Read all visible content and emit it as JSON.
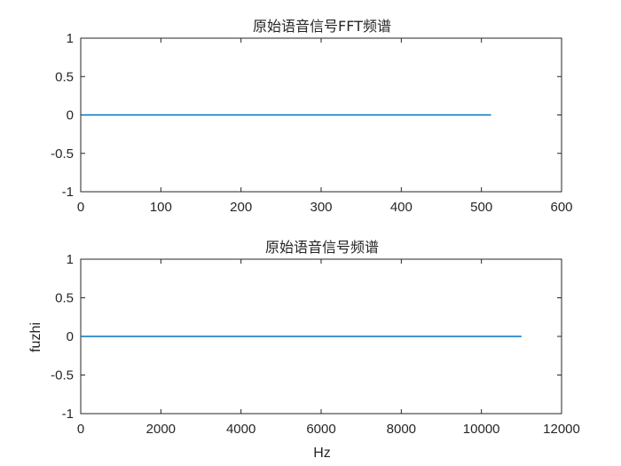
{
  "chart_data": [
    {
      "type": "line",
      "title": "原始语音信号FFT频谱",
      "xlabel": "",
      "ylabel": "",
      "xlim": [
        0,
        600
      ],
      "ylim": [
        -1,
        1
      ],
      "xticks": [
        0,
        100,
        200,
        300,
        400,
        500,
        600
      ],
      "yticks": [
        -1,
        -0.5,
        0,
        0.5,
        1
      ],
      "xtick_labels": [
        "0",
        "100",
        "200",
        "300",
        "400",
        "500",
        "600"
      ],
      "ytick_labels": [
        "-1",
        "-0.5",
        "0",
        "0.5",
        "1"
      ],
      "grid": false,
      "series": [
        {
          "x": [
            1,
            512
          ],
          "values": [
            0,
            0
          ],
          "color": "#0072BD"
        }
      ]
    },
    {
      "type": "line",
      "title": "原始语音信号频谱",
      "xlabel": "Hz",
      "ylabel": "fuzhi",
      "xlim": [
        0,
        12000
      ],
      "ylim": [
        -1,
        1
      ],
      "xticks": [
        0,
        2000,
        4000,
        6000,
        8000,
        10000,
        12000
      ],
      "yticks": [
        -1,
        -0.5,
        0,
        0.5,
        1
      ],
      "xtick_labels": [
        "0",
        "2000",
        "4000",
        "6000",
        "8000",
        "10000",
        "12000"
      ],
      "ytick_labels": [
        "-1",
        "-0.5",
        "0",
        "0.5",
        "1"
      ],
      "grid": false,
      "series": [
        {
          "x": [
            0,
            11000
          ],
          "values": [
            0,
            0
          ],
          "color": "#0072BD"
        }
      ]
    }
  ]
}
